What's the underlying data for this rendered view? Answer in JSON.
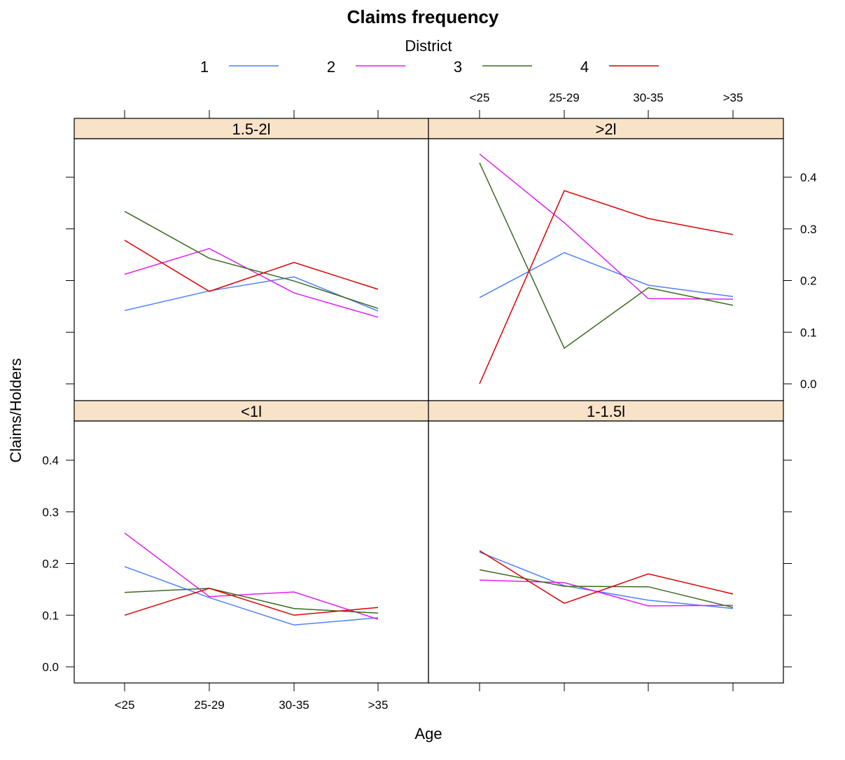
{
  "chart_data": {
    "type": "line",
    "title": "Claims frequency",
    "xlabel": "Age",
    "ylabel": "Claims/Holders",
    "ylim": [
      0.0,
      0.45
    ],
    "yticks": [
      "0.0",
      "0.1",
      "0.2",
      "0.3",
      "0.4"
    ],
    "ytick_values": [
      0.0,
      0.1,
      0.2,
      0.3,
      0.4
    ],
    "categories": [
      "<25",
      "25-29",
      "30-35",
      ">35"
    ],
    "legend": {
      "title": "District",
      "placement": "top",
      "entries": [
        {
          "label": "1",
          "color": "#4f80ff"
        },
        {
          "label": "2",
          "color": "#e01ff0"
        },
        {
          "label": "3",
          "color": "#3b6b1f"
        },
        {
          "label": "4",
          "color": "#dd0000"
        }
      ]
    },
    "panels": [
      {
        "title": "1.5-2l",
        "position": "top-left",
        "series": [
          {
            "name": "1",
            "values": [
              0.142,
              0.18,
              0.207,
              0.141
            ]
          },
          {
            "name": "2",
            "values": [
              0.212,
              0.262,
              0.176,
              0.129
            ]
          },
          {
            "name": "3",
            "values": [
              0.334,
              0.243,
              0.199,
              0.146
            ]
          },
          {
            "name": "4",
            "values": [
              0.278,
              0.179,
              0.235,
              0.183
            ]
          }
        ]
      },
      {
        "title": ">2l",
        "position": "top-right",
        "series": [
          {
            "name": "1",
            "values": [
              0.167,
              0.254,
              0.191,
              0.169
            ]
          },
          {
            "name": "2",
            "values": [
              0.445,
              0.312,
              0.165,
              0.164
            ]
          },
          {
            "name": "3",
            "values": [
              0.428,
              0.069,
              0.186,
              0.152
            ]
          },
          {
            "name": "4",
            "values": [
              0.0,
              0.374,
              0.32,
              0.289
            ]
          }
        ]
      },
      {
        "title": "<1l",
        "position": "bottom-left",
        "series": [
          {
            "name": "1",
            "values": [
              0.194,
              0.134,
              0.081,
              0.095
            ]
          },
          {
            "name": "2",
            "values": [
              0.259,
              0.136,
              0.145,
              0.092
            ]
          },
          {
            "name": "3",
            "values": [
              0.144,
              0.152,
              0.113,
              0.104
            ]
          },
          {
            "name": "4",
            "values": [
              0.1,
              0.152,
              0.1,
              0.115
            ]
          }
        ]
      },
      {
        "title": "1-1.5l",
        "position": "bottom-right",
        "series": [
          {
            "name": "1",
            "values": [
              0.222,
              0.157,
              0.129,
              0.113
            ]
          },
          {
            "name": "2",
            "values": [
              0.168,
              0.163,
              0.118,
              0.119
            ]
          },
          {
            "name": "3",
            "values": [
              0.188,
              0.156,
              0.155,
              0.115
            ]
          },
          {
            "name": "4",
            "values": [
              0.225,
              0.123,
              0.18,
              0.141
            ]
          }
        ]
      }
    ],
    "strip_color": "#f8e2c8",
    "grid": false
  }
}
